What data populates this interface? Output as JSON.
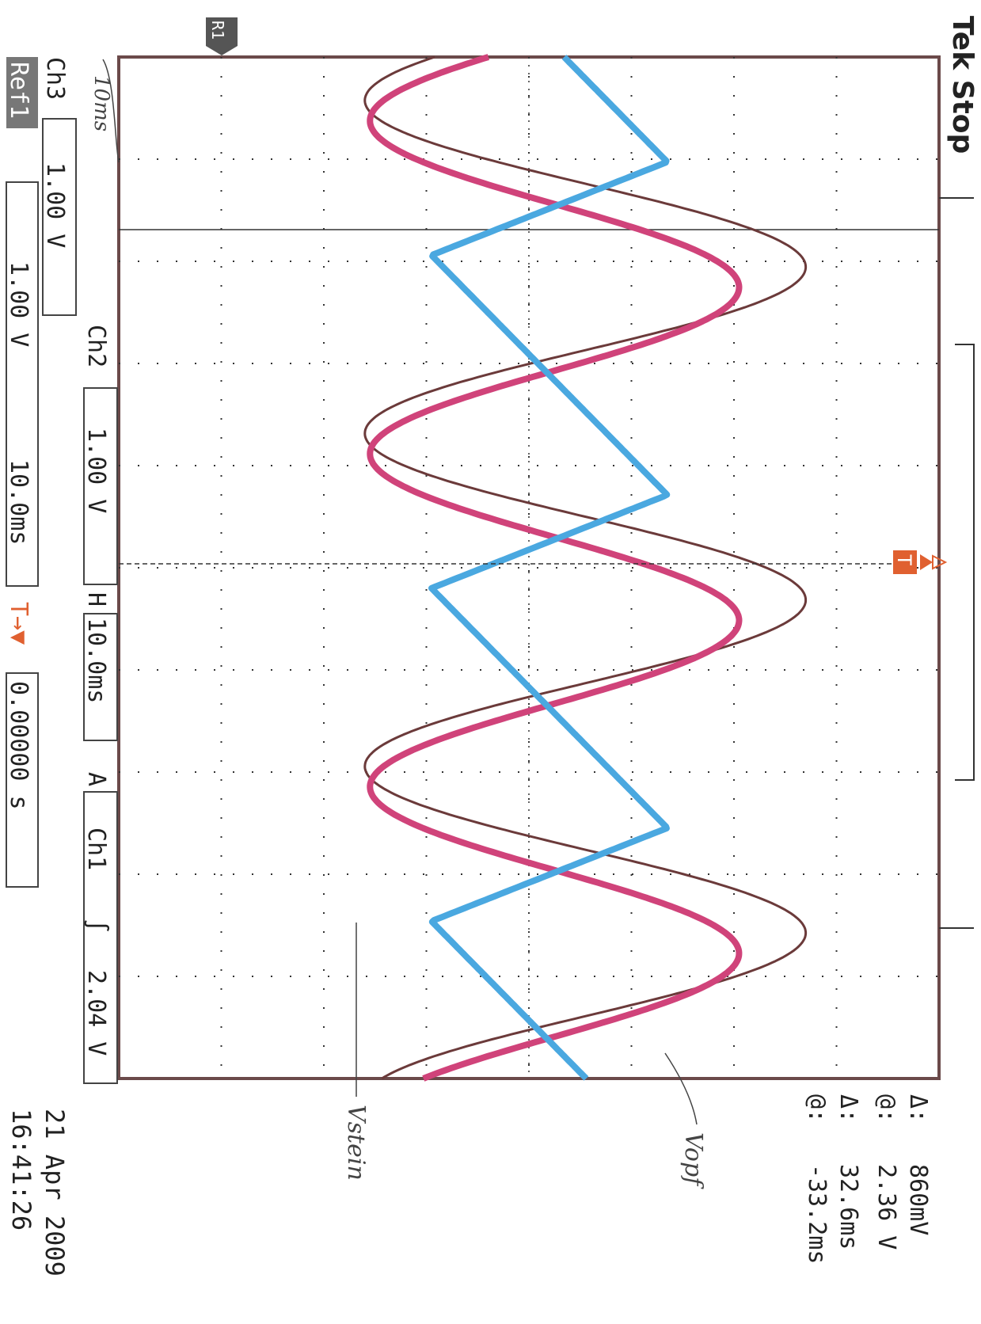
{
  "status": "Tek Stop",
  "reference_marker": "R1",
  "trigger_marker": "T",
  "cursor_readout": {
    "voltage_delta_symbol": "Δ:",
    "voltage_delta": "860mV",
    "voltage_at_symbol": "@:",
    "voltage_at": "2.36 V",
    "time_delta_symbol": "Δ:",
    "time_delta": "32.6ms",
    "time_at_symbol": "@:",
    "time_at": "-33.2ms"
  },
  "datetime": {
    "date": "21 Apr 2009",
    "time": "16:41:26"
  },
  "bottom_bar": {
    "ch3_label": "Ch3",
    "ch3_scale": "1.00 V",
    "ch2_label": "Ch2",
    "ch2_scale": "1.00 V",
    "h_label": "H",
    "h_scale": "10.0ms",
    "a_label": "A",
    "trigger_source": "Ch1",
    "trigger_slope_symbol": "∫",
    "trigger_level": "2.04 V",
    "ref_label": "Ref1",
    "ref_scale": "1.00 V",
    "ref_timebase": "10.0ms",
    "trigger_pos_symbol": "T→▼",
    "trigger_position": "0.00000 s"
  },
  "handwritten": {
    "note_left": "10ms",
    "label_red": "Vopf",
    "label_blue": "Vstein"
  },
  "colors": {
    "ch_brown": "#6b3a3a",
    "ch_magenta": "#d0437a",
    "ch_cyan": "#4aa8e0",
    "grid": "#333333",
    "frame": "#6b4a4a",
    "trigger": "#e06030"
  },
  "chart_data": {
    "type": "line",
    "x_axis": "time (horizontal on screen = vertical on page)",
    "x_unit": "ms",
    "x_divisions": 10,
    "x_per_div": 10.0,
    "y_divisions": 8,
    "y_per_div": 1.0,
    "xlim": [
      -50,
      50
    ],
    "grid": true,
    "series": [
      {
        "color": "#6b3a3a",
        "period_ms": 32.6,
        "amplitude_div": 2.15,
        "offset_div": 0.55,
        "phase_ms": -5
      },
      {
        "color": "#d0437a",
        "period_ms": 32.6,
        "amplitude_div": 1.8,
        "offset_div": 0.25,
        "phase_ms": -3
      },
      {
        "color": "#4aa8e0",
        "period_ms": 32.6,
        "amplitude_div": 1.15,
        "offset_div": 0.2,
        "phase_ms": 2
      }
    ]
  }
}
